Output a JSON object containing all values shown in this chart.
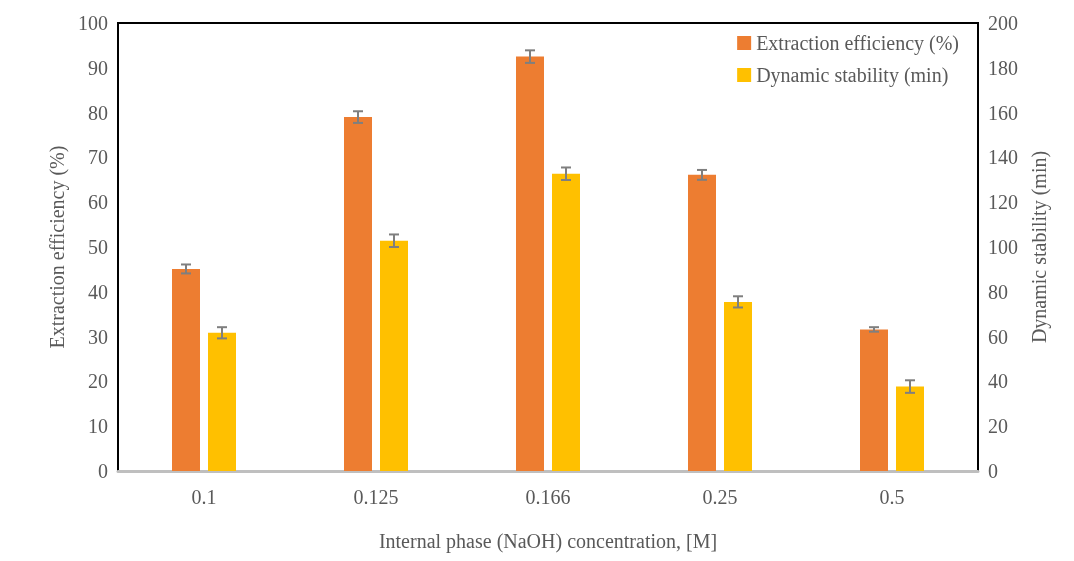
{
  "chart_data": {
    "type": "bar",
    "xlabel": "Internal phase (NaOH) concentration, [M]",
    "ylabel": "Extraction efficiency (%)",
    "y2label": "Dynamic stability (min)",
    "categories": [
      "0.1",
      "0.125",
      "0.166",
      "0.25",
      "0.5"
    ],
    "series": [
      {
        "name": "Extraction efficiency (%)",
        "color": "#ed7d31",
        "values": [
          45.1,
          79.0,
          92.5,
          66.1,
          31.6
        ],
        "errors": [
          1.0,
          1.3,
          1.4,
          1.1,
          0.5
        ]
      },
      {
        "name": "Dynamic stability (min)",
        "color": "#ffc000",
        "axis": "y2",
        "values": [
          61.7,
          102.8,
          132.7,
          75.5,
          37.7
        ],
        "errors": [
          2.5,
          2.8,
          2.8,
          2.5,
          2.8
        ]
      }
    ],
    "ylim": [
      0,
      100
    ],
    "yticks": [
      0,
      10,
      20,
      30,
      40,
      50,
      60,
      70,
      80,
      90,
      100
    ],
    "y2lim": [
      0,
      200
    ],
    "y2ticks": [
      0,
      20,
      40,
      60,
      80,
      100,
      120,
      140,
      160,
      180,
      200
    ],
    "grid": false,
    "legend": "top right"
  }
}
